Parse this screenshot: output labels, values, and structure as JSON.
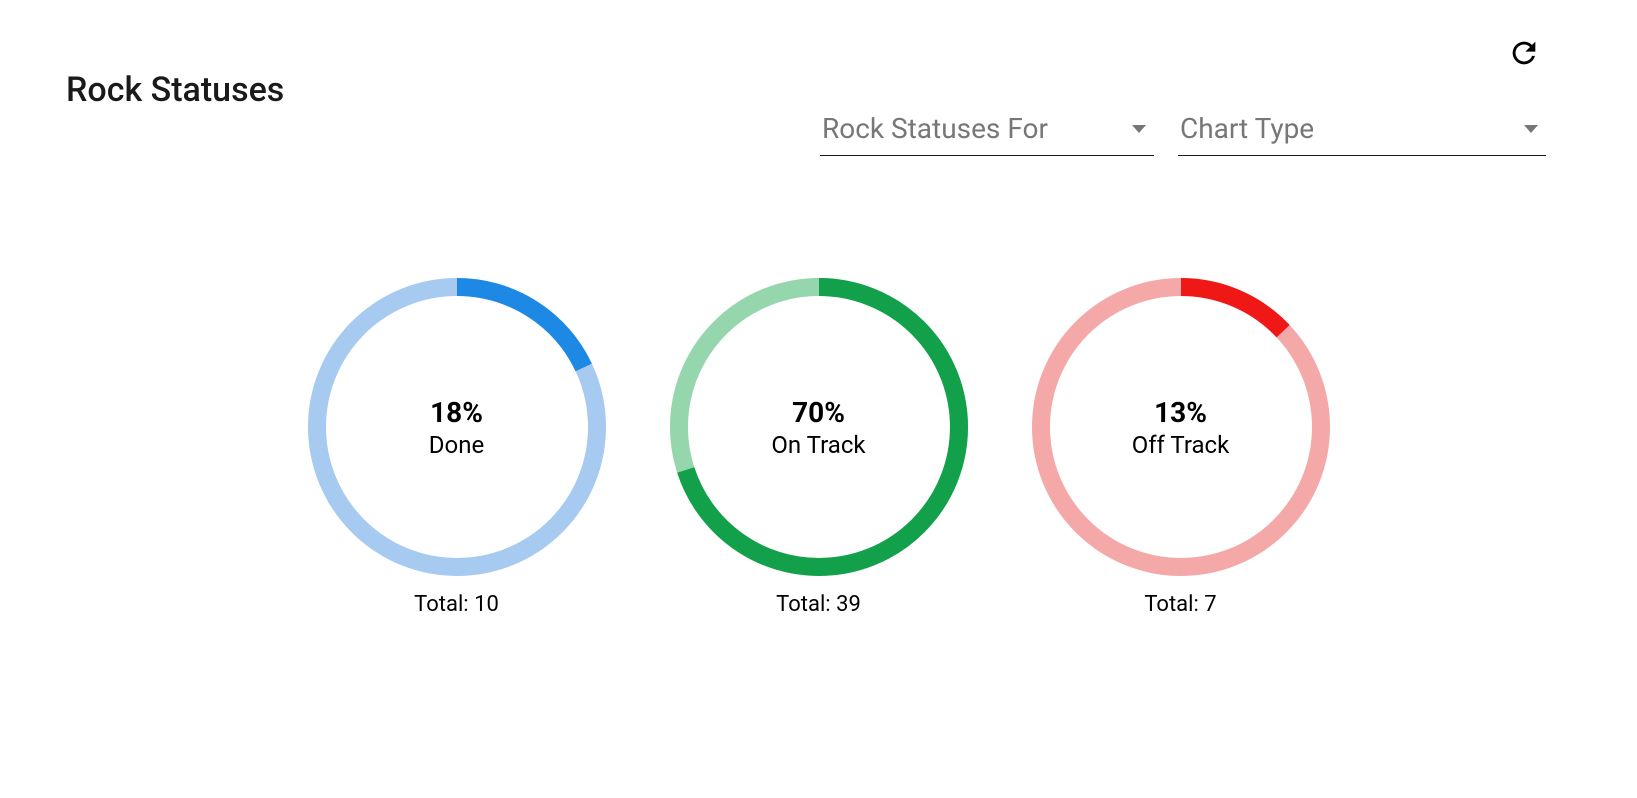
{
  "title": "Rock Statuses",
  "filters": {
    "for_label": "Rock Statuses For",
    "type_label": "Chart Type"
  },
  "charts": {
    "ring_radius": 140,
    "ring_stroke_width": 18,
    "background_color": "#ffffff",
    "items": [
      {
        "key": "done",
        "percent": 18,
        "percent_display": "18%",
        "label": "Done",
        "total": 10,
        "total_display": "Total: 10",
        "color_fg": "#1e88e5",
        "color_bg": "#a6caf0"
      },
      {
        "key": "on-track",
        "percent": 70,
        "percent_display": "70%",
        "label": "On Track",
        "total": 39,
        "total_display": "Total: 39",
        "color_fg": "#13a04a",
        "color_bg": "#95d6ad"
      },
      {
        "key": "off-track",
        "percent": 13,
        "percent_display": "13%",
        "label": "Off Track",
        "total": 7,
        "total_display": "Total: 7",
        "color_fg": "#f01717",
        "color_bg": "#f4a8a8"
      }
    ]
  }
}
